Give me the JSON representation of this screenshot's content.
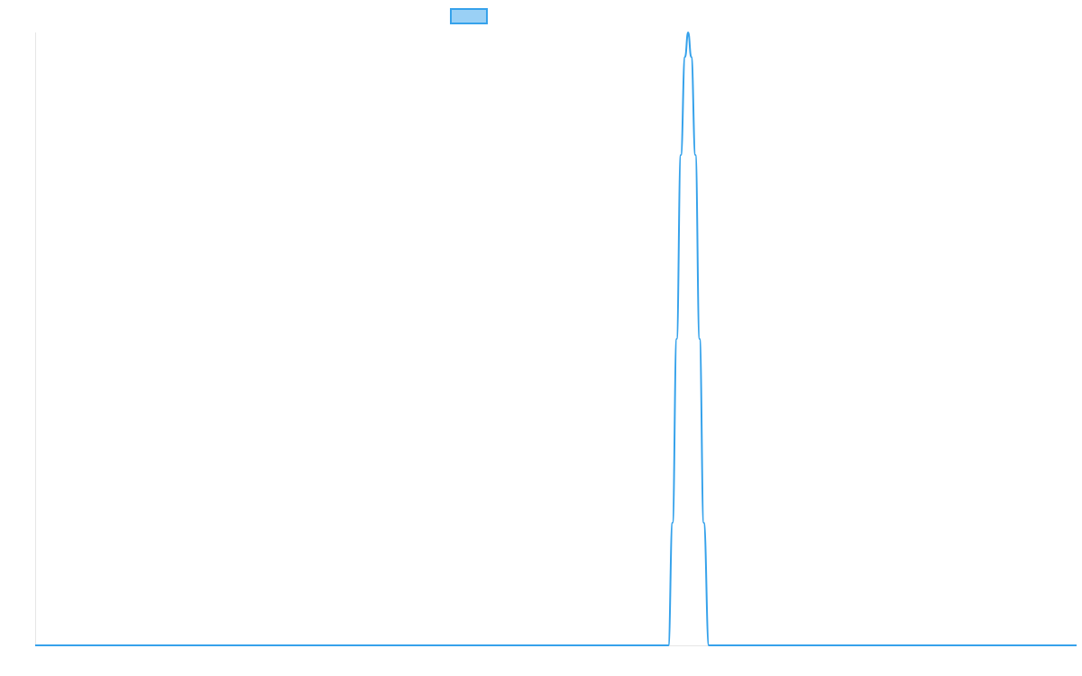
{
  "chart_data": {
    "type": "line",
    "title": "",
    "xlabel": "",
    "ylabel": "",
    "grid": false,
    "legend": "top-center",
    "x_range": [
      0,
      1
    ],
    "y_range": [
      0,
      1
    ],
    "series": [
      {
        "name": "",
        "color": "#36a2eb",
        "fill_color": "#9ad0f5",
        "points": [
          [
            0.0,
            0.0
          ],
          [
            0.608,
            0.0
          ],
          [
            0.612,
            0.2
          ],
          [
            0.616,
            0.5
          ],
          [
            0.62,
            0.8
          ],
          [
            0.624,
            0.96
          ],
          [
            0.627,
            1.0
          ],
          [
            0.63,
            0.96
          ],
          [
            0.634,
            0.8
          ],
          [
            0.638,
            0.5
          ],
          [
            0.642,
            0.2
          ],
          [
            0.647,
            0.0
          ],
          [
            1.0,
            0.0
          ]
        ]
      }
    ]
  }
}
